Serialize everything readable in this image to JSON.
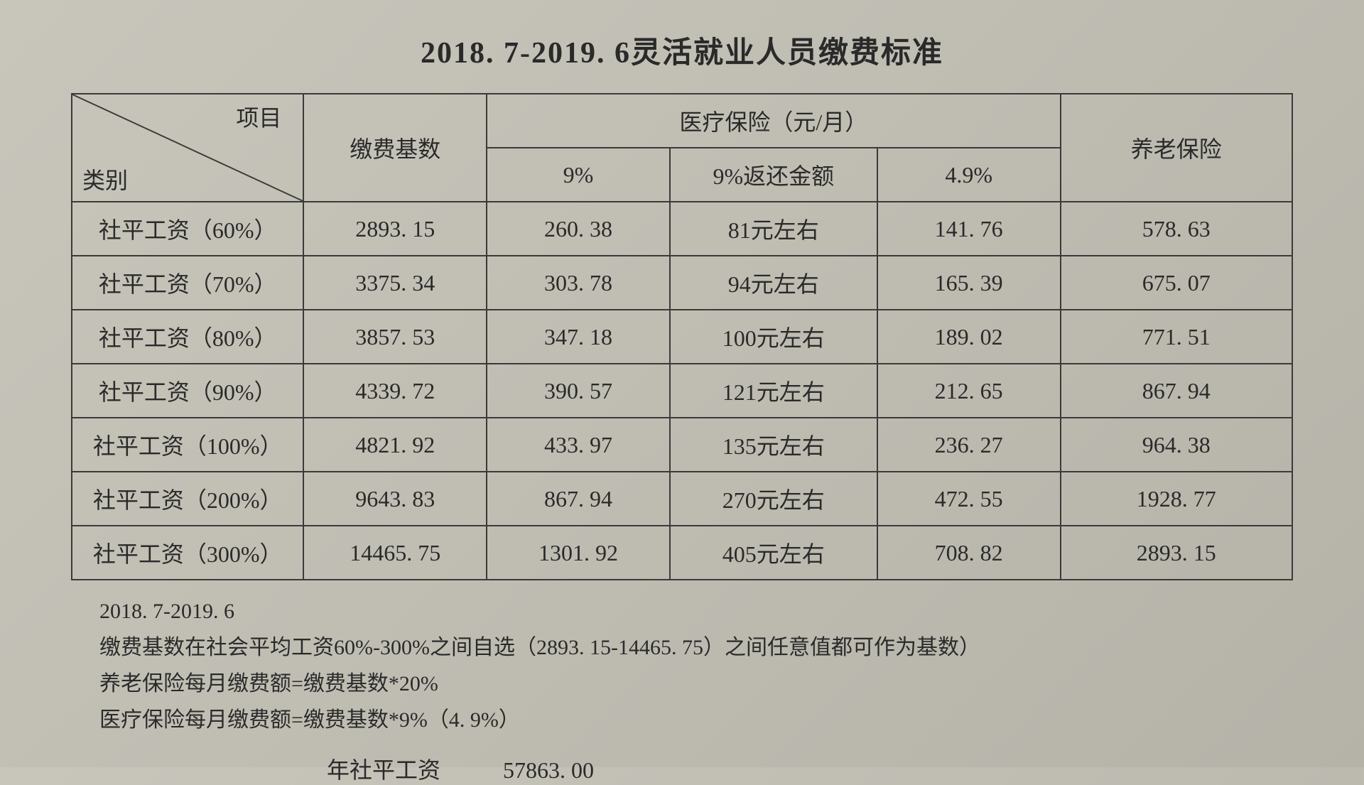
{
  "title": "2018. 7-2019. 6灵活就业人员缴费标准",
  "table": {
    "header": {
      "diag_top": "项目",
      "diag_bottom": "类别",
      "base": "缴费基数",
      "medical_group": "医疗保险（元/月）",
      "pct9": "9%",
      "refund9": "9%返还金额",
      "pct49": "4.9%",
      "pension": "养老保险"
    },
    "rows": [
      {
        "category": "社平工资（60%）",
        "base": "2893. 15",
        "p9": "260. 38",
        "refund": "81元左右",
        "p49": "141. 76",
        "pension": "578. 63"
      },
      {
        "category": "社平工资（70%）",
        "base": "3375. 34",
        "p9": "303. 78",
        "refund": "94元左右",
        "p49": "165. 39",
        "pension": "675. 07"
      },
      {
        "category": "社平工资（80%）",
        "base": "3857. 53",
        "p9": "347. 18",
        "refund": "100元左右",
        "p49": "189. 02",
        "pension": "771. 51"
      },
      {
        "category": "社平工资（90%）",
        "base": "4339. 72",
        "p9": "390. 57",
        "refund": "121元左右",
        "p49": "212. 65",
        "pension": "867. 94"
      },
      {
        "category": "社平工资（100%）",
        "base": "4821. 92",
        "p9": "433. 97",
        "refund": "135元左右",
        "p49": "236. 27",
        "pension": "964. 38"
      },
      {
        "category": "社平工资（200%）",
        "base": "9643. 83",
        "p9": "867. 94",
        "refund": "270元左右",
        "p49": "472. 55",
        "pension": "1928. 77"
      },
      {
        "category": "社平工资（300%）",
        "base": "14465. 75",
        "p9": "1301. 92",
        "refund": "405元左右",
        "p49": "708. 82",
        "pension": "2893. 15"
      }
    ]
  },
  "notes": {
    "line1": "2018. 7-2019. 6",
    "line2": "缴费基数在社会平均工资60%-300%之间自选（2893. 15-14465. 75）之间任意值都可作为基数）",
    "line3": "养老保险每月缴费额=缴费基数*20%",
    "line4": "医疗保险每月缴费额=缴费基数*9%（4. 9%）"
  },
  "annual": {
    "label": "年社平工资",
    "value": "57863. 00"
  },
  "style": {
    "border_color": "#3a3a3a",
    "text_color": "#2a2a2a",
    "background": "#c2c0b5",
    "col_widths_pct": [
      19,
      15,
      15,
      17,
      15,
      19
    ]
  }
}
